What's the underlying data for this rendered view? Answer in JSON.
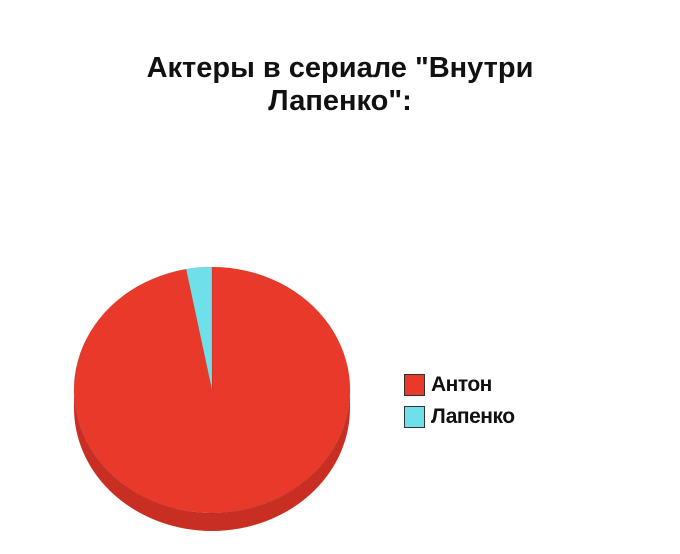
{
  "chart_data": {
    "type": "pie",
    "title_lines": [
      "Актеры в сериале \"Внутри",
      "Лапенко\":"
    ],
    "slices": [
      {
        "label": "Антон",
        "value": 97,
        "color": "#e8392a"
      },
      {
        "label": "Лапенко",
        "value": 3,
        "color": "#6fe0ea"
      }
    ],
    "legend_position": "right",
    "style": "3d"
  }
}
